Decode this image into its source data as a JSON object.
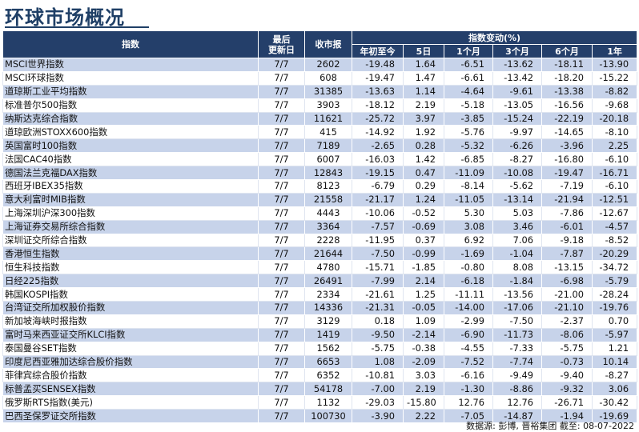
{
  "title": "环球市场概况",
  "headers": {
    "index": "指数",
    "date_line1": "最后",
    "date_line2": "更新日",
    "close": "收市报",
    "change_group": "指数变动(%)",
    "ytd": "年初至今",
    "d5": "5日",
    "m1": "1个月",
    "m3": "3个月",
    "m6": "6个月",
    "y1": "1年"
  },
  "rows": [
    {
      "name": "MSCI世界指数",
      "date": "7/7",
      "close": "2602",
      "ytd": "-19.48",
      "d5": "1.64",
      "m1": "-6.51",
      "m3": "-13.62",
      "m6": "-18.11",
      "y1": "-13.90"
    },
    {
      "name": "MSCI环球指数",
      "date": "7/7",
      "close": "608",
      "ytd": "-19.47",
      "d5": "1.47",
      "m1": "-6.61",
      "m3": "-13.42",
      "m6": "-18.20",
      "y1": "-15.22"
    },
    {
      "name": "道琼斯工业平均指数",
      "date": "7/7",
      "close": "31385",
      "ytd": "-13.63",
      "d5": "1.14",
      "m1": "-4.64",
      "m3": "-9.61",
      "m6": "-13.38",
      "y1": "-8.82"
    },
    {
      "name": "标准普尔500指数",
      "date": "7/7",
      "close": "3903",
      "ytd": "-18.12",
      "d5": "2.19",
      "m1": "-5.18",
      "m3": "-13.05",
      "m6": "-16.56",
      "y1": "-9.68"
    },
    {
      "name": "纳斯达克综合指数",
      "date": "7/7",
      "close": "11621",
      "ytd": "-25.72",
      "d5": "3.97",
      "m1": "-3.85",
      "m3": "-15.24",
      "m6": "-22.19",
      "y1": "-20.18"
    },
    {
      "name": "道琼欧洲STOXX600指数",
      "date": "7/7",
      "close": "415",
      "ytd": "-14.92",
      "d5": "1.92",
      "m1": "-5.76",
      "m3": "-9.97",
      "m6": "-14.65",
      "y1": "-8.10"
    },
    {
      "name": "英国富时100指数",
      "date": "7/7",
      "close": "7189",
      "ytd": "-2.65",
      "d5": "0.28",
      "m1": "-5.32",
      "m3": "-6.26",
      "m6": "-3.96",
      "y1": "2.25"
    },
    {
      "name": "法国CAC40指数",
      "date": "7/7",
      "close": "6007",
      "ytd": "-16.03",
      "d5": "1.42",
      "m1": "-6.85",
      "m3": "-8.27",
      "m6": "-16.80",
      "y1": "-6.10"
    },
    {
      "name": "德国法兰克福DAX指数",
      "date": "7/7",
      "close": "12843",
      "ytd": "-19.15",
      "d5": "0.47",
      "m1": "-11.09",
      "m3": "-10.08",
      "m6": "-19.47",
      "y1": "-16.71"
    },
    {
      "name": "西班牙IBEX35指数",
      "date": "7/7",
      "close": "8123",
      "ytd": "-6.79",
      "d5": "0.29",
      "m1": "-8.14",
      "m3": "-5.62",
      "m6": "-7.19",
      "y1": "-6.10"
    },
    {
      "name": "意大利富时MIB指数",
      "date": "7/7",
      "close": "21558",
      "ytd": "-21.17",
      "d5": "1.24",
      "m1": "-11.05",
      "m3": "-13.14",
      "m6": "-21.94",
      "y1": "-12.51"
    },
    {
      "name": "上海深圳沪深300指数",
      "date": "7/7",
      "close": "4443",
      "ytd": "-10.06",
      "d5": "-0.52",
      "m1": "5.30",
      "m3": "5.03",
      "m6": "-7.86",
      "y1": "-12.67"
    },
    {
      "name": "上海证券交易所综合指数",
      "date": "7/7",
      "close": "3364",
      "ytd": "-7.57",
      "d5": "-0.69",
      "m1": "3.08",
      "m3": "3.46",
      "m6": "-6.01",
      "y1": "-4.57"
    },
    {
      "name": "深圳证交所综合指数",
      "date": "7/7",
      "close": "2228",
      "ytd": "-11.95",
      "d5": "0.37",
      "m1": "6.92",
      "m3": "7.06",
      "m6": "-9.18",
      "y1": "-8.52"
    },
    {
      "name": "香港恒生指数",
      "date": "7/7",
      "close": "21644",
      "ytd": "-7.50",
      "d5": "-0.99",
      "m1": "-1.69",
      "m3": "-1.04",
      "m6": "-7.87",
      "y1": "-20.29"
    },
    {
      "name": "恒生科技指数",
      "date": "7/7",
      "close": "4780",
      "ytd": "-15.71",
      "d5": "-1.85",
      "m1": "-0.80",
      "m3": "8.08",
      "m6": "-13.15",
      "y1": "-34.72"
    },
    {
      "name": "日经225指数",
      "date": "7/7",
      "close": "26491",
      "ytd": "-7.99",
      "d5": "2.14",
      "m1": "-6.18",
      "m3": "-1.84",
      "m6": "-6.98",
      "y1": "-5.79"
    },
    {
      "name": "韩国KOSPI指数",
      "date": "7/7",
      "close": "2334",
      "ytd": "-21.61",
      "d5": "1.25",
      "m1": "-11.11",
      "m3": "-13.56",
      "m6": "-21.00",
      "y1": "-28.24"
    },
    {
      "name": "台湾证交所加权股价指数",
      "date": "7/7",
      "close": "14336",
      "ytd": "-21.31",
      "d5": "-0.05",
      "m1": "-14.00",
      "m3": "-17.06",
      "m6": "-21.10",
      "y1": "-19.76"
    },
    {
      "name": "新加坡海峡时报指数",
      "date": "7/7",
      "close": "3129",
      "ytd": "0.18",
      "d5": "1.09",
      "m1": "-2.99",
      "m3": "-7.50",
      "m6": "-2.37",
      "y1": "0.70"
    },
    {
      "name": "富时马来西亚证交所KLCI指数",
      "date": "7/7",
      "close": "1419",
      "ytd": "-9.50",
      "d5": "-2.14",
      "m1": "-6.90",
      "m3": "-11.73",
      "m6": "-8.06",
      "y1": "-5.97"
    },
    {
      "name": "泰国曼谷SET指数",
      "date": "7/7",
      "close": "1562",
      "ytd": "-5.75",
      "d5": "-0.38",
      "m1": "-4.55",
      "m3": "-7.33",
      "m6": "-5.75",
      "y1": "1.21"
    },
    {
      "name": "印度尼西亚雅加达综合股价指数",
      "date": "7/7",
      "close": "6653",
      "ytd": "1.08",
      "d5": "-2.09",
      "m1": "-7.52",
      "m3": "-7.74",
      "m6": "-0.73",
      "y1": "10.14"
    },
    {
      "name": "菲律宾综合股价指数",
      "date": "7/7",
      "close": "6352",
      "ytd": "-10.81",
      "d5": "3.03",
      "m1": "-6.16",
      "m3": "-9.49",
      "m6": "-9.40",
      "y1": "-8.27"
    },
    {
      "name": "标普孟买SENSEX指数",
      "date": "7/7",
      "close": "54178",
      "ytd": "-7.00",
      "d5": "2.19",
      "m1": "-1.30",
      "m3": "-8.86",
      "m6": "-9.32",
      "y1": "3.06"
    },
    {
      "name": "俄罗斯RTS指数(美元)",
      "date": "7/7",
      "close": "1132",
      "ytd": "-29.03",
      "d5": "-15.80",
      "m1": "12.76",
      "m3": "12.76",
      "m6": "-26.71",
      "y1": "-30.42"
    },
    {
      "name": "巴西圣保罗证交所指数",
      "date": "7/7",
      "close": "100730",
      "ytd": "-3.90",
      "d5": "2.22",
      "m1": "-7.05",
      "m3": "-14.87",
      "m6": "-1.94",
      "y1": "-19.69"
    }
  ],
  "source": "数据源: 彭博, 晋裕集团 截至: 08-07-2022"
}
